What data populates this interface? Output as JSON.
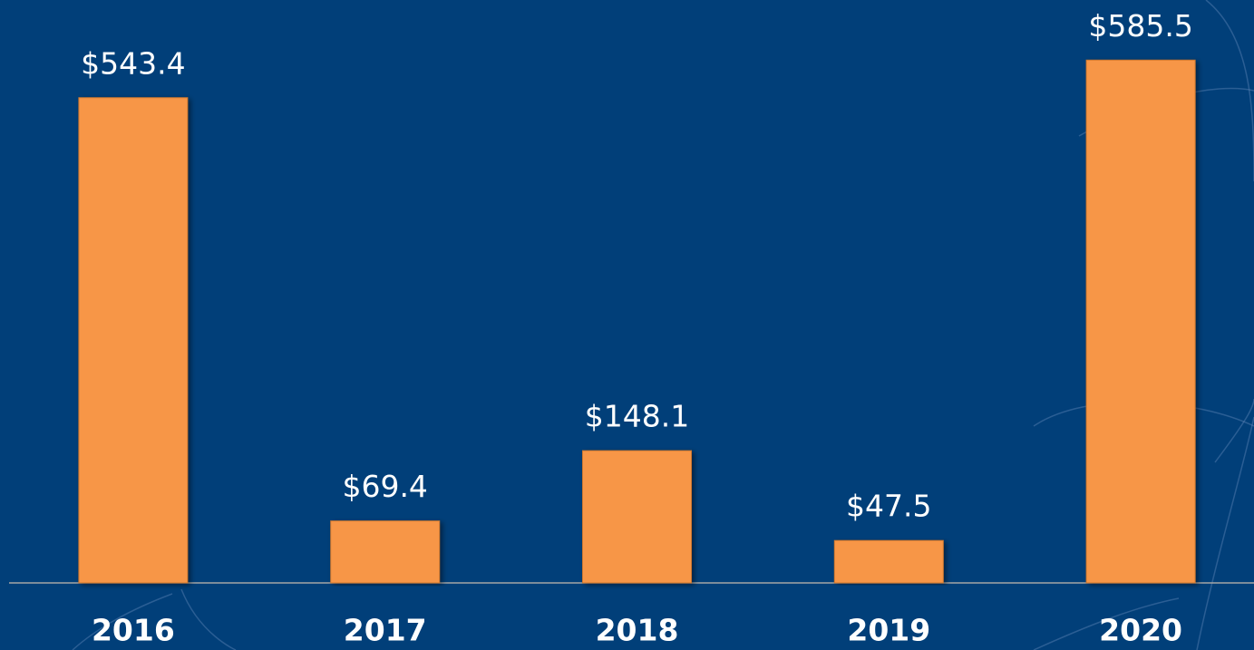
{
  "chart_data": {
    "type": "bar",
    "categories": [
      "2016",
      "2017",
      "2018",
      "2019",
      "2020"
    ],
    "values": [
      543.4,
      69.4,
      148.1,
      47.5,
      585.5
    ],
    "value_labels": [
      "$543.4",
      "$69.4",
      "$148.1",
      "$47.5",
      "$585.5"
    ],
    "color": "#f79646"
  }
}
